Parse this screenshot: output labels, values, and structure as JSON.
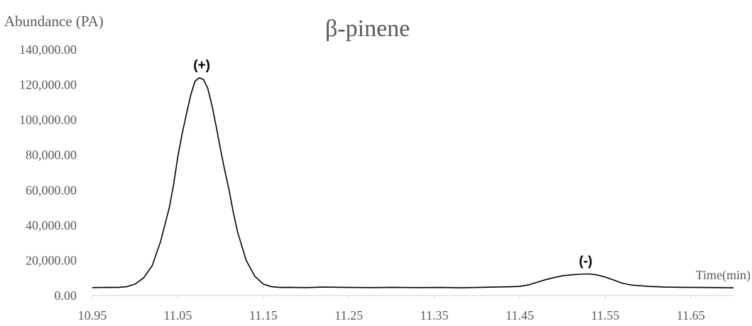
{
  "chart_data": {
    "type": "line",
    "title": "β-pinene",
    "ylabel": "Abundance (PA)",
    "xlabel": "Time(min)",
    "xlim": [
      10.95,
      11.7
    ],
    "ylim": [
      0,
      140000
    ],
    "x_ticks": [
      "10.95",
      "11.05",
      "11.15",
      "11.25",
      "11.35",
      "11.45",
      "11.55",
      "11.65"
    ],
    "y_ticks": [
      "0.00",
      "20,000.00",
      "40,000.00",
      "60,000.00",
      "80,000.00",
      "100,000.00",
      "120,000.00",
      "140,000.00"
    ],
    "grid": false,
    "legend": "none",
    "line_color": "#000000",
    "annotations": [
      {
        "label": "(+)",
        "x": 11.078,
        "y": 125500
      },
      {
        "label": "(-)",
        "x": 11.527,
        "y": 14000
      }
    ],
    "series": [
      {
        "x": [
          10.95,
          10.97,
          10.98,
          10.99,
          11.0,
          11.01,
          11.02,
          11.03,
          11.04,
          11.045,
          11.05,
          11.055,
          11.06,
          11.065,
          11.07,
          11.075,
          11.08,
          11.085,
          11.09,
          11.095,
          11.1,
          11.105,
          11.11,
          11.115,
          11.12,
          11.13,
          11.14,
          11.15,
          11.16,
          11.17,
          11.18,
          11.2,
          11.22,
          11.25,
          11.28,
          11.3,
          11.33,
          11.36,
          11.38,
          11.4,
          11.42,
          11.44,
          11.45,
          11.46,
          11.47,
          11.48,
          11.49,
          11.5,
          11.51,
          11.52,
          11.53,
          11.54,
          11.55,
          11.56,
          11.57,
          11.58,
          11.6,
          11.62,
          11.64,
          11.66,
          11.68,
          11.7
        ],
        "y": [
          4500,
          4700,
          4600,
          5000,
          6500,
          10000,
          17000,
          31000,
          50000,
          63000,
          79000,
          92000,
          103000,
          114000,
          122000,
          124000,
          123000,
          118000,
          108000,
          96000,
          83000,
          71000,
          60000,
          47000,
          36000,
          20000,
          11000,
          6500,
          5000,
          4600,
          4700,
          4500,
          4800,
          4600,
          4500,
          4700,
          4500,
          4600,
          4400,
          4600,
          4800,
          5000,
          5200,
          6000,
          7500,
          9000,
          10200,
          11200,
          11800,
          12100,
          12300,
          11800,
          10500,
          8800,
          7000,
          6000,
          5200,
          4800,
          4700,
          4600,
          4500,
          4400
        ]
      }
    ]
  }
}
